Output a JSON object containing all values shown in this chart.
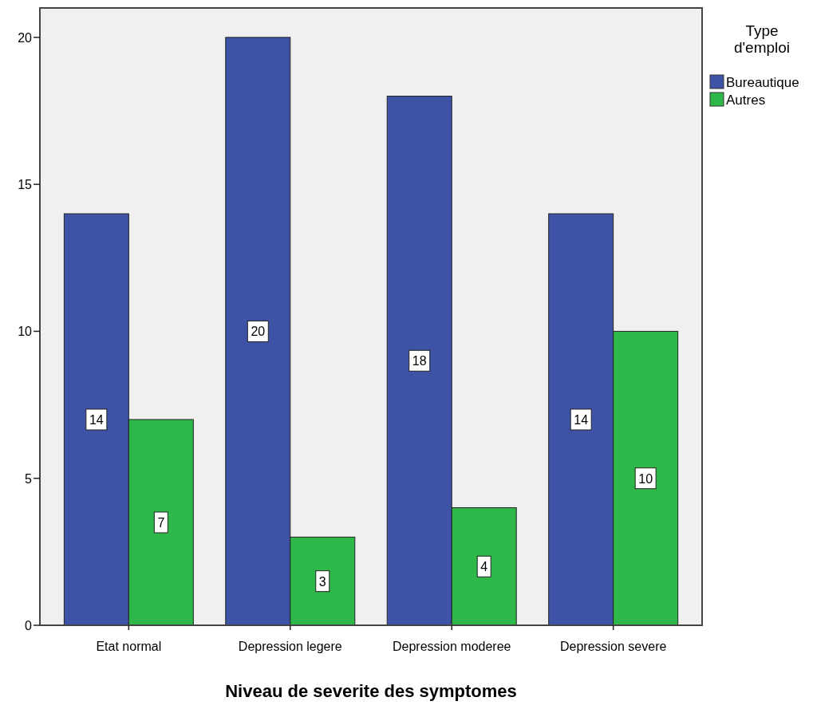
{
  "chart_data": {
    "type": "bar",
    "xlabel": "Niveau de severite des symptomes",
    "legend_title": "Type d'emploi",
    "categories": [
      "Etat normal",
      "Depression legere",
      "Depression moderee",
      "Depression severe"
    ],
    "series": [
      {
        "name": "Bureautique",
        "color": "#3e53a6",
        "values": [
          14,
          20,
          18,
          14
        ]
      },
      {
        "name": "Autres",
        "color": "#2fb84a",
        "values": [
          7,
          3,
          4,
          10
        ]
      }
    ],
    "ylim": [
      0,
      21
    ],
    "yticks": [
      0,
      5,
      10,
      15,
      20
    ],
    "data_labels": true,
    "legend": "right",
    "grid": false
  }
}
